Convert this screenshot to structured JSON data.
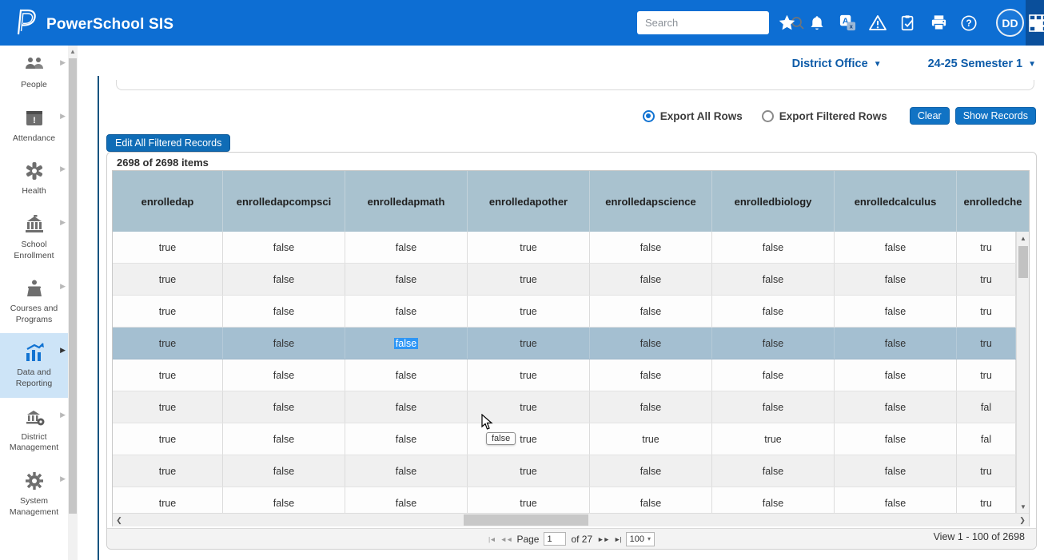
{
  "app": {
    "title": "PowerSchool SIS"
  },
  "topbar": {
    "search_placeholder": "Search",
    "avatar_initials": "DD",
    "icon_names": [
      "search-icon",
      "favorites-star-icon",
      "notifications-bell-icon",
      "translate-icon",
      "alerts-warning-icon",
      "reports-clipboard-icon",
      "print-icon",
      "help-icon",
      "apps-grid-icon"
    ]
  },
  "context_bar": {
    "org": "District Office",
    "term": "24-25 Semester 1"
  },
  "sidebar": {
    "items": [
      {
        "label": "People",
        "icon": "people-icon"
      },
      {
        "label": "Attendance",
        "icon": "attendance-icon"
      },
      {
        "label": "Health",
        "icon": "health-icon"
      },
      {
        "label": "School Enrollment",
        "icon": "school-enrollment-icon"
      },
      {
        "label": "Courses and Programs",
        "icon": "courses-icon"
      },
      {
        "label": "Data and Reporting",
        "icon": "data-reporting-icon",
        "active": true
      },
      {
        "label": "District Management",
        "icon": "district-management-icon"
      },
      {
        "label": "System Management",
        "icon": "system-management-icon"
      }
    ]
  },
  "toolbar": {
    "export_all_label": "Export All Rows",
    "export_filtered_label": "Export Filtered Rows",
    "export_selected": "all",
    "clear_label": "Clear",
    "show_records_label": "Show Records",
    "edit_all_label": "Edit All Filtered Records"
  },
  "table": {
    "items_summary": "2698 of 2698 items",
    "columns": [
      "enrolledap",
      "enrolledapcompsci",
      "enrolledapmath",
      "enrolledapother",
      "enrolledapscience",
      "enrolledbiology",
      "enrolledcalculus",
      "enrolledche"
    ],
    "rows": [
      [
        "true",
        "false",
        "false",
        "true",
        "false",
        "false",
        "false",
        "tru"
      ],
      [
        "true",
        "false",
        "false",
        "true",
        "false",
        "false",
        "false",
        "tru"
      ],
      [
        "true",
        "false",
        "false",
        "true",
        "false",
        "false",
        "false",
        "tru"
      ],
      [
        "true",
        "false",
        "false",
        "true",
        "false",
        "false",
        "false",
        "tru"
      ],
      [
        "true",
        "false",
        "false",
        "true",
        "false",
        "false",
        "false",
        "tru"
      ],
      [
        "true",
        "false",
        "false",
        "true",
        "false",
        "false",
        "false",
        "fal"
      ],
      [
        "true",
        "false",
        "false",
        "true",
        "true",
        "true",
        "false",
        "fal"
      ],
      [
        "true",
        "false",
        "false",
        "true",
        "false",
        "false",
        "false",
        "tru"
      ],
      [
        "true",
        "false",
        "false",
        "true",
        "false",
        "false",
        "false",
        "tru"
      ]
    ],
    "selected_row": 3,
    "selected_cell": {
      "row": 3,
      "col": 2
    },
    "tooltip_text": "false"
  },
  "pagination": {
    "page_label": "Page",
    "current_page": "1",
    "total_label": "of 27",
    "page_size": "100",
    "view_summary": "View 1 - 100 of 2698"
  }
}
